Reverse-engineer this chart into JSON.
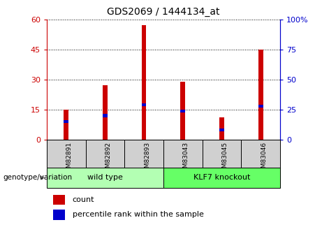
{
  "title": "GDS2069 / 1444134_at",
  "samples": [
    "GSM82891",
    "GSM82892",
    "GSM82893",
    "GSM83043",
    "GSM83045",
    "GSM83046"
  ],
  "count_values": [
    15,
    27,
    57,
    29,
    11,
    45
  ],
  "percentile_values": [
    15,
    20,
    29,
    24,
    8,
    28
  ],
  "left_ylim": [
    0,
    60
  ],
  "right_ylim": [
    0,
    100
  ],
  "left_yticks": [
    0,
    15,
    30,
    45,
    60
  ],
  "right_yticks": [
    0,
    25,
    50,
    75,
    100
  ],
  "right_yticklabels": [
    "0",
    "25",
    "50",
    "75",
    "100%"
  ],
  "group_labels": [
    "wild type",
    "KLF7 knockout"
  ],
  "group_ranges": [
    [
      0,
      3
    ],
    [
      3,
      6
    ]
  ],
  "group_color_light": "#b3ffb3",
  "group_color_dark": "#66ff66",
  "group_label_prefix": "genotype/variation",
  "bar_color_red": "#cc0000",
  "bar_color_blue": "#0000cc",
  "bar_width": 0.12,
  "background_color": "#ffffff",
  "left_axis_color": "#cc0000",
  "right_axis_color": "#0000cc",
  "legend_items": [
    "count",
    "percentile rank within the sample"
  ],
  "xtick_bg_color": "#d0d0d0"
}
